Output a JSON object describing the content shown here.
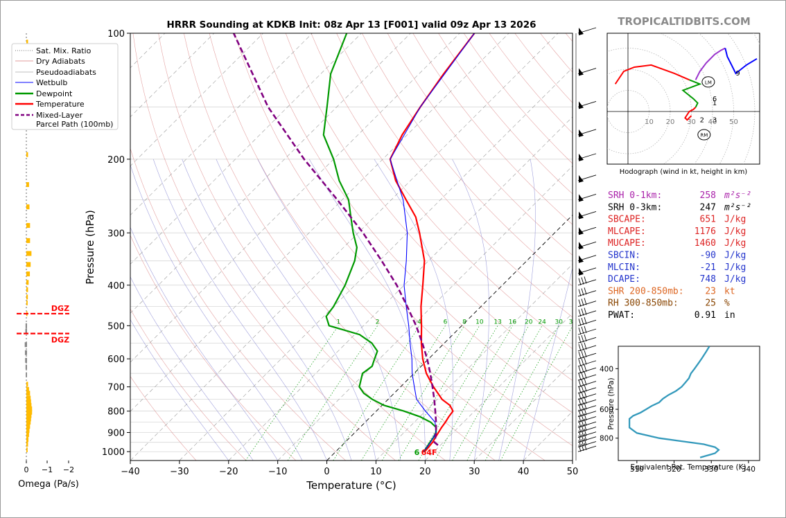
{
  "title": "HRRR Sounding at KDKB Init: 08z Apr 13 [F001] valid 09z Apr 13 2026",
  "watermark": "TROPICALTIDBITS.COM",
  "colors": {
    "temperature": "#ff0000",
    "dewpoint": "#009900",
    "wetbulb": "#0000ff",
    "parcel": "#800080",
    "dry": "#d87a7a",
    "moist": "#8080d0",
    "mix": "#009900",
    "omega": "#ffbb00",
    "dgz": "#ff0000",
    "thetae": "#3399bb"
  },
  "legend": {
    "items": [
      {
        "label": "Sat. Mix. Ratio",
        "icon": "dotted-line-icon"
      },
      {
        "label": "Dry Adiabats",
        "icon": "thin-red-line-icon"
      },
      {
        "label": "Pseudoadiabats",
        "icon": "thin-gray-line-icon"
      },
      {
        "label": "Wetbulb",
        "icon": "blue-line-icon"
      },
      {
        "label": "Dewpoint",
        "icon": "green-line-icon"
      },
      {
        "label": "Temperature",
        "icon": "red-line-icon"
      },
      {
        "label": "Mixed-Layer\nParcel Path (100mb)",
        "icon": "purple-dashed-line-icon"
      }
    ]
  },
  "omega": {
    "xlabel": "Omega (Pa/s)",
    "ticks": [
      "0",
      "−1",
      "−2"
    ],
    "dgz_label": "DGZ",
    "dgz_levels": [
      468,
      522
    ]
  },
  "chart_data": [
    {
      "type": "line",
      "subtype": "skew-t",
      "xlabel": "Temperature (°C)",
      "ylabel": "Pressure (hPa)",
      "xlim": [
        -40,
        50
      ],
      "ylim": [
        1050,
        100
      ],
      "log_y": true,
      "xticks": [
        "−40",
        "−30",
        "−20",
        "−10",
        "0",
        "10",
        "20",
        "30",
        "40",
        "50"
      ],
      "yticks": [
        "100",
        "200",
        "300",
        "400",
        "500",
        "600",
        "700",
        "800",
        "900",
        "1000"
      ],
      "mix_ratio_labels": [
        "1",
        "2",
        "4",
        "6",
        "8",
        "10",
        "13",
        "16",
        "20",
        "24",
        "30",
        "36"
      ],
      "surface": {
        "dewpoint_label": "6",
        "temperature_label": "64F"
      },
      "series": [
        {
          "name": "Temperature",
          "p": [
            1000,
            980,
            950,
            925,
            900,
            875,
            850,
            825,
            800,
            775,
            750,
            700,
            650,
            600,
            550,
            500,
            450,
            400,
            350,
            300,
            275,
            250,
            225,
            200,
            175,
            150,
            125,
            100
          ],
          "t": [
            18.1,
            18.0,
            17.8,
            17.4,
            17.0,
            16.6,
            16.3,
            15.9,
            15.6,
            13.8,
            11.0,
            6.7,
            2.5,
            -1.2,
            -4.7,
            -8.2,
            -12.2,
            -16.2,
            -20.8,
            -27.5,
            -31.5,
            -37.0,
            -43.0,
            -48.5,
            -51.0,
            -53.0,
            -55.0,
            -57.0
          ]
        },
        {
          "name": "Dewpoint",
          "p": [
            1000,
            975,
            950,
            925,
            900,
            875,
            850,
            825,
            800,
            775,
            750,
            725,
            700,
            650,
            625,
            600,
            575,
            550,
            525,
            500,
            475,
            450,
            400,
            350,
            325,
            300,
            275,
            250,
            225,
            200,
            175,
            150,
            125,
            100
          ],
          "t": [
            17.9,
            17.6,
            17.3,
            17.0,
            16.5,
            15.5,
            13.3,
            10.0,
            5.6,
            0.4,
            -3.2,
            -6.2,
            -8.4,
            -10.5,
            -10.0,
            -11.0,
            -12.0,
            -14.8,
            -19.0,
            -27.0,
            -29.5,
            -30.0,
            -32.0,
            -35.0,
            -37.3,
            -41.0,
            -44.7,
            -48.7,
            -54.5,
            -60.0,
            -67.0,
            -72.0,
            -78.0,
            -83.0
          ]
        },
        {
          "name": "Wetbulb",
          "p": [
            1000,
            950,
            900,
            850,
            800,
            750,
            700,
            650,
            600,
            550,
            500,
            450,
            400,
            350,
            300,
            250,
            200,
            150,
            100
          ],
          "t": [
            17.9,
            17.4,
            16.5,
            14.2,
            10.0,
            5.8,
            2.8,
            -0.4,
            -3.4,
            -7.0,
            -10.8,
            -15.2,
            -20.0,
            -24.5,
            -30.0,
            -37.6,
            -48.5,
            -53.0,
            -57.0
          ]
        },
        {
          "name": "Mixed-Layer Parcel Path (100mb)",
          "p": [
            965,
            950,
            925,
            900,
            850,
            800,
            750,
            700,
            650,
            600,
            550,
            500,
            450,
            400,
            350,
            300,
            250,
            200,
            150,
            100
          ],
          "t": [
            19.5,
            18.2,
            17.4,
            16.5,
            14.4,
            12.0,
            9.4,
            6.5,
            3.3,
            -0.3,
            -4.5,
            -9.3,
            -15.0,
            -21.5,
            -29.5,
            -39.0,
            -51.0,
            -66.0,
            -84.0,
            -106.0
          ]
        }
      ]
    },
    {
      "type": "line",
      "subtype": "hodograph",
      "title": "Hodograph (wind in kt, height in km)",
      "ring_labels": [
        "10",
        "20",
        "30",
        "40",
        "50"
      ],
      "markers": [
        "LM",
        "RM"
      ],
      "height_labels": [
        "1",
        "2",
        "3",
        "6",
        "9"
      ],
      "series": [
        {
          "name": "0-1 km",
          "color": "#ff0000",
          "u": [
            30,
            28,
            27,
            29,
            31,
            32
          ],
          "v": [
            -2,
            -4,
            -3,
            0,
            1,
            2
          ]
        },
        {
          "name": "1-3 km",
          "color": "#009900",
          "u": [
            32,
            33,
            31,
            26,
            34,
            29
          ],
          "v": [
            2,
            4,
            6,
            10,
            13,
            15
          ]
        },
        {
          "name": "3-6 km",
          "color": "#ff0000",
          "u": [
            29,
            22,
            11,
            3,
            -2,
            -6
          ],
          "v": [
            15,
            18,
            22,
            21,
            19,
            13
          ]
        },
        {
          "name": "6-9 km",
          "color": "#9933cc",
          "u": [
            32,
            34,
            37,
            41,
            44,
            46
          ],
          "v": [
            15,
            19,
            23,
            27,
            29,
            30
          ]
        },
        {
          "name": "9-12 km",
          "color": "#0000ff",
          "u": [
            46,
            47,
            49,
            51,
            56,
            61
          ],
          "v": [
            30,
            26,
            22,
            18,
            22,
            25
          ]
        }
      ]
    },
    {
      "type": "line",
      "subtype": "theta-e profile",
      "xlabel": "Equivalent Pot. Temperature (K)",
      "ylabel": "Pressure (hPa)",
      "xlim": [
        305,
        343
      ],
      "ylim": [
        1000,
        320
      ],
      "xticks": [
        "310",
        "320",
        "330",
        "340"
      ],
      "yticks": [
        "400",
        "600",
        "800"
      ],
      "series": [
        {
          "name": "Theta-E",
          "p": [
            970,
            960,
            950,
            930,
            900,
            875,
            850,
            825,
            800,
            780,
            760,
            740,
            720,
            700,
            680,
            660,
            640,
            620,
            600,
            580,
            560,
            540,
            520,
            500,
            480,
            460,
            440,
            420,
            400,
            380,
            360,
            340,
            320
          ],
          "t": [
            327,
            328,
            329,
            331,
            332,
            331,
            328,
            322,
            316,
            313,
            310,
            309,
            308,
            308,
            308,
            308,
            309,
            311,
            312.5,
            314,
            316,
            317,
            318.5,
            320.5,
            322,
            323,
            324,
            324.5,
            325.5,
            326.5,
            327.5,
            328.5,
            329.5
          ]
        }
      ]
    }
  ],
  "indices": [
    {
      "name": "SRH 0-1km:",
      "value": "258",
      "unit": "m²s⁻²",
      "color": "#aa22aa"
    },
    {
      "name": "SRH 0-3km:",
      "value": "247",
      "unit": "m²s⁻²",
      "color": "#000000"
    },
    {
      "name": "SBCAPE:",
      "value": "651",
      "unit": "J/kg",
      "color": "#dd2222"
    },
    {
      "name": "MLCAPE:",
      "value": "1176",
      "unit": "J/kg",
      "color": "#dd2222"
    },
    {
      "name": "MUCAPE:",
      "value": "1460",
      "unit": "J/kg",
      "color": "#dd2222"
    },
    {
      "name": "SBCIN:",
      "value": "-90",
      "unit": "J/kg",
      "color": "#2233cc"
    },
    {
      "name": "MLCIN:",
      "value": "-21",
      "unit": "J/kg",
      "color": "#2233cc"
    },
    {
      "name": "DCAPE:",
      "value": "748",
      "unit": "J/kg",
      "color": "#2233cc"
    },
    {
      "name": "SHR 200-850mb:",
      "value": "23",
      "unit": "kt",
      "color": "#dd6622"
    },
    {
      "name": "RH 300-850mb:",
      "value": "25",
      "unit": "%",
      "color": "#884400"
    },
    {
      "name": "PWAT:",
      "value": "0.91",
      "unit": "in",
      "color": "#000000"
    }
  ]
}
